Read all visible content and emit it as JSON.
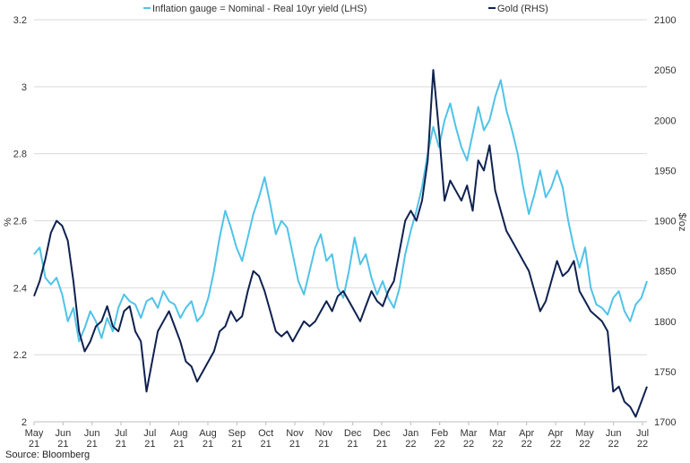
{
  "chart_data": {
    "type": "line",
    "title": "",
    "source": "Source: Bloomberg",
    "ylabel_left": "%",
    "ylabel_right": "$/oz",
    "ylim_left": [
      2.0,
      3.2
    ],
    "ylim_right": [
      1700,
      2100
    ],
    "yticks_left": [
      "2",
      "2.2",
      "2.4",
      "2.6",
      "2.8",
      "3",
      "3.2"
    ],
    "yticks_right": [
      "1700",
      "1750",
      "1800",
      "1850",
      "1900",
      "1950",
      "2000",
      "2050",
      "2100"
    ],
    "xticks": [
      {
        "m": "May",
        "y": "21"
      },
      {
        "m": "Jun",
        "y": "21"
      },
      {
        "m": "Jun",
        "y": "21"
      },
      {
        "m": "Jul",
        "y": "21"
      },
      {
        "m": "Jul",
        "y": "21"
      },
      {
        "m": "Aug",
        "y": "21"
      },
      {
        "m": "Aug",
        "y": "21"
      },
      {
        "m": "Sep",
        "y": "21"
      },
      {
        "m": "Oct",
        "y": "21"
      },
      {
        "m": "Nov",
        "y": "21"
      },
      {
        "m": "Nov",
        "y": "21"
      },
      {
        "m": "Dec",
        "y": "21"
      },
      {
        "m": "Dec",
        "y": "21"
      },
      {
        "m": "Jan",
        "y": "22"
      },
      {
        "m": "Feb",
        "y": "22"
      },
      {
        "m": "Mar",
        "y": "22"
      },
      {
        "m": "Mar",
        "y": "22"
      },
      {
        "m": "Apr",
        "y": "22"
      },
      {
        "m": "Apr",
        "y": "22"
      },
      {
        "m": "May",
        "y": "22"
      },
      {
        "m": "Jun",
        "y": "22"
      },
      {
        "m": "Jul",
        "y": "22"
      }
    ],
    "legend_placement": "top",
    "series": [
      {
        "name": "Inflation gauge = Nominal - Real 10yr yield (LHS)",
        "axis": "left",
        "color": "#4fc3e8",
        "values": [
          2.5,
          2.52,
          2.43,
          2.41,
          2.43,
          2.38,
          2.3,
          2.34,
          2.24,
          2.28,
          2.33,
          2.3,
          2.25,
          2.31,
          2.27,
          2.34,
          2.38,
          2.36,
          2.35,
          2.31,
          2.36,
          2.37,
          2.34,
          2.39,
          2.36,
          2.35,
          2.31,
          2.34,
          2.36,
          2.3,
          2.32,
          2.37,
          2.45,
          2.55,
          2.63,
          2.58,
          2.52,
          2.48,
          2.55,
          2.62,
          2.67,
          2.73,
          2.65,
          2.56,
          2.6,
          2.58,
          2.5,
          2.42,
          2.38,
          2.45,
          2.52,
          2.56,
          2.48,
          2.5,
          2.4,
          2.37,
          2.45,
          2.55,
          2.47,
          2.5,
          2.43,
          2.38,
          2.42,
          2.37,
          2.34,
          2.4,
          2.5,
          2.57,
          2.63,
          2.7,
          2.8,
          2.88,
          2.82,
          2.9,
          2.95,
          2.88,
          2.82,
          2.78,
          2.86,
          2.94,
          2.87,
          2.9,
          2.97,
          3.02,
          2.93,
          2.87,
          2.8,
          2.7,
          2.62,
          2.68,
          2.75,
          2.67,
          2.7,
          2.75,
          2.7,
          2.6,
          2.52,
          2.46,
          2.52,
          2.4,
          2.35,
          2.34,
          2.32,
          2.37,
          2.39,
          2.33,
          2.3,
          2.35,
          2.37,
          2.42
        ]
      },
      {
        "name": "Gold (RHS)",
        "axis": "right",
        "color": "#0f2150",
        "values": [
          1825,
          1840,
          1862,
          1888,
          1900,
          1895,
          1880,
          1840,
          1790,
          1770,
          1780,
          1795,
          1800,
          1815,
          1795,
          1790,
          1810,
          1815,
          1790,
          1780,
          1730,
          1760,
          1790,
          1800,
          1810,
          1795,
          1780,
          1760,
          1755,
          1740,
          1750,
          1760,
          1770,
          1790,
          1795,
          1810,
          1800,
          1805,
          1830,
          1850,
          1845,
          1830,
          1810,
          1790,
          1785,
          1790,
          1780,
          1790,
          1800,
          1795,
          1800,
          1810,
          1820,
          1810,
          1825,
          1830,
          1820,
          1810,
          1800,
          1815,
          1830,
          1820,
          1815,
          1830,
          1840,
          1870,
          1900,
          1910,
          1900,
          1920,
          1960,
          2050,
          1990,
          1920,
          1940,
          1930,
          1920,
          1935,
          1910,
          1960,
          1950,
          1975,
          1930,
          1910,
          1890,
          1880,
          1870,
          1860,
          1850,
          1830,
          1810,
          1820,
          1840,
          1860,
          1845,
          1850,
          1860,
          1830,
          1820,
          1810,
          1805,
          1800,
          1790,
          1730,
          1735,
          1720,
          1715,
          1705,
          1720,
          1735
        ]
      }
    ]
  }
}
